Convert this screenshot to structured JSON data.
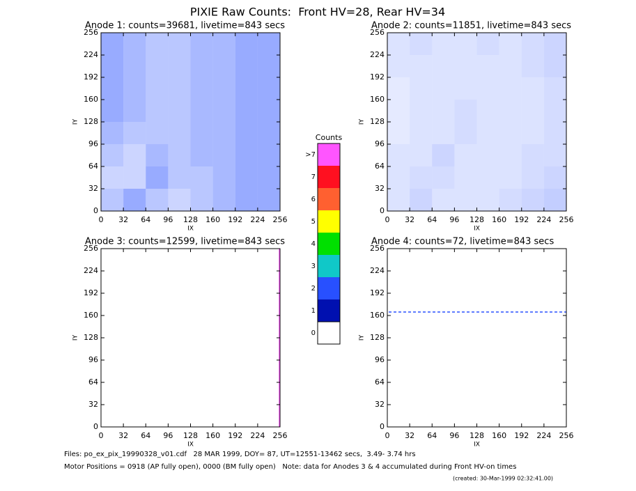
{
  "page_title": "PIXIE Raw Counts:  Front HV=28, Rear HV=34",
  "chart_data": [
    {
      "type": "heatmap",
      "title": "Anode 1: counts=39681, livetime=843 secs",
      "xlabel": "IX",
      "ylabel": "IY",
      "xlim": [
        0,
        256
      ],
      "ylim": [
        0,
        256
      ],
      "xticks": [
        0,
        32,
        64,
        96,
        128,
        160,
        192,
        224,
        256
      ],
      "yticks": [
        0,
        32,
        64,
        96,
        128,
        160,
        192,
        224,
        256
      ],
      "color": "#2850ff",
      "density": [
        [
          0.6,
          0.5,
          0.4,
          0.4,
          0.5,
          0.5,
          0.6,
          0.6
        ],
        [
          0.6,
          0.5,
          0.4,
          0.4,
          0.5,
          0.5,
          0.6,
          0.6
        ],
        [
          0.6,
          0.5,
          0.4,
          0.4,
          0.5,
          0.5,
          0.6,
          0.6
        ],
        [
          0.6,
          0.5,
          0.4,
          0.4,
          0.5,
          0.5,
          0.6,
          0.6
        ],
        [
          0.5,
          0.4,
          0.4,
          0.4,
          0.5,
          0.5,
          0.6,
          0.6
        ],
        [
          0.4,
          0.3,
          0.5,
          0.4,
          0.5,
          0.5,
          0.6,
          0.6
        ],
        [
          0.3,
          0.3,
          0.6,
          0.4,
          0.4,
          0.5,
          0.6,
          0.6
        ],
        [
          0.4,
          0.6,
          0.4,
          0.3,
          0.4,
          0.5,
          0.6,
          0.6
        ]
      ]
    },
    {
      "type": "heatmap",
      "title": "Anode 2: counts=11851, livetime=843 secs",
      "xlabel": "IX",
      "ylabel": "IY",
      "xlim": [
        0,
        256
      ],
      "ylim": [
        0,
        256
      ],
      "xticks": [
        0,
        32,
        64,
        96,
        128,
        160,
        192,
        224,
        256
      ],
      "yticks": [
        0,
        32,
        64,
        96,
        128,
        160,
        192,
        224,
        256
      ],
      "color": "#2850ff",
      "density": [
        [
          0.2,
          0.25,
          0.2,
          0.2,
          0.25,
          0.2,
          0.25,
          0.3
        ],
        [
          0.2,
          0.2,
          0.2,
          0.2,
          0.2,
          0.2,
          0.25,
          0.3
        ],
        [
          0.15,
          0.2,
          0.2,
          0.2,
          0.2,
          0.2,
          0.2,
          0.25
        ],
        [
          0.15,
          0.2,
          0.2,
          0.25,
          0.2,
          0.2,
          0.2,
          0.25
        ],
        [
          0.15,
          0.2,
          0.2,
          0.25,
          0.2,
          0.2,
          0.2,
          0.25
        ],
        [
          0.2,
          0.2,
          0.3,
          0.2,
          0.2,
          0.2,
          0.25,
          0.25
        ],
        [
          0.2,
          0.25,
          0.25,
          0.2,
          0.2,
          0.2,
          0.25,
          0.3
        ],
        [
          0.2,
          0.3,
          0.2,
          0.2,
          0.2,
          0.25,
          0.3,
          0.35
        ]
      ]
    },
    {
      "type": "heatmap",
      "title": "Anode 3: counts=12599, livetime=843 secs",
      "xlabel": "IX",
      "ylabel": "IY",
      "xlim": [
        0,
        256
      ],
      "ylim": [
        0,
        256
      ],
      "xticks": [
        0,
        32,
        64,
        96,
        128,
        160,
        192,
        224,
        256
      ],
      "yticks": [
        0,
        32,
        64,
        96,
        128,
        160,
        192,
        224,
        256
      ],
      "lines": [
        {
          "axis": "x",
          "value": 255,
          "color": "#ff55ff"
        }
      ]
    },
    {
      "type": "heatmap",
      "title": "Anode 4: counts=72, livetime=843 secs",
      "xlabel": "IX",
      "ylabel": "IY",
      "xlim": [
        0,
        256
      ],
      "ylim": [
        0,
        256
      ],
      "xticks": [
        0,
        32,
        64,
        96,
        128,
        160,
        192,
        224,
        256
      ],
      "yticks": [
        0,
        32,
        64,
        96,
        128,
        160,
        192,
        224,
        256
      ],
      "lines": [
        {
          "axis": "y",
          "value": 165,
          "color": "#2850ff"
        }
      ]
    }
  ],
  "colorbar": {
    "title": "Counts",
    "labels": [
      ">7",
      7,
      6,
      5,
      4,
      3,
      2,
      1,
      0
    ],
    "colors": [
      "#ff55ff",
      "#ff1020",
      "#ff6030",
      "#ffff00",
      "#00e000",
      "#10c8c8",
      "#2850ff",
      "#0010b0",
      "#ffffff"
    ]
  },
  "footer": [
    "Files: po_ex_pix_19990328_v01.cdf   28 MAR 1999, DOY= 87, UT=12551-13462 secs,  3.49- 3.74 hrs",
    "Motor Positions = 0918 (AP fully open), 0000 (BM fully open)   Note: data for Anodes 3 & 4 accumulated during Front HV-on times",
    "(created: 30-Mar-1999 02:32:41.00)"
  ]
}
